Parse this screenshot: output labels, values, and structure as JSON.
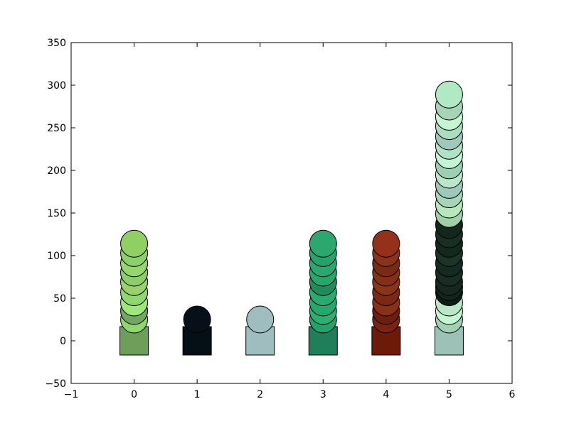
{
  "chart_data": {
    "type": "scatter",
    "title": "",
    "xlabel": "",
    "ylabel": "",
    "xlim": [
      -1,
      6
    ],
    "ylim": [
      -50,
      350
    ],
    "grid": false,
    "xticks": [
      -1,
      0,
      1,
      2,
      3,
      4,
      5,
      6
    ],
    "yticks": [
      -50,
      0,
      50,
      100,
      150,
      200,
      250,
      300,
      350
    ],
    "xtick_labels": [
      "−1",
      "0",
      "1",
      "2",
      "3",
      "4",
      "5",
      "6"
    ],
    "ytick_labels": [
      "−50",
      "0",
      "50",
      "100",
      "150",
      "200",
      "250",
      "300",
      "350"
    ],
    "squares": [
      {
        "x": 0,
        "y": 0,
        "color": "#6e9f5a"
      },
      {
        "x": 1,
        "y": 0,
        "color": "#041016"
      },
      {
        "x": 2,
        "y": 0,
        "color": "#9fbcbf"
      },
      {
        "x": 3,
        "y": 0,
        "color": "#1f7f5a"
      },
      {
        "x": 4,
        "y": 0,
        "color": "#6e1a08"
      },
      {
        "x": 5,
        "y": 0,
        "color": "#9cc2b8"
      }
    ],
    "stacks": [
      {
        "x": 0,
        "values": [
          25,
          35,
          45,
          57,
          69,
          80,
          91,
          103,
          114
        ],
        "colors": [
          "#8fd96a",
          "#6fa85e",
          "#9ee87a",
          "#8ed870",
          "#9ad26a",
          "#8bcf66",
          "#96d66e",
          "#8cd068",
          "#8fcf63"
        ]
      },
      {
        "x": 1,
        "values": [
          25
        ],
        "colors": [
          "#071018"
        ]
      },
      {
        "x": 2,
        "values": [
          25
        ],
        "colors": [
          "#9fbcbf"
        ]
      },
      {
        "x": 3,
        "values": [
          25,
          35,
          45,
          57,
          69,
          80,
          91,
          103,
          114
        ],
        "colors": [
          "#22a36a",
          "#2bb072",
          "#25a86c",
          "#2aaa70",
          "#1f8c5c",
          "#27a56b",
          "#2ba872",
          "#26a36d",
          "#2ba86e"
        ]
      },
      {
        "x": 4,
        "values": [
          25,
          35,
          45,
          57,
          69,
          80,
          91,
          103,
          114
        ],
        "colors": [
          "#7a2410",
          "#6e1e0c",
          "#8a3014",
          "#7c2812",
          "#8a3416",
          "#853015",
          "#7b2a12",
          "#8a3316",
          "#95311a"
        ]
      },
      {
        "x": 5,
        "values": [
          25,
          35,
          45,
          57,
          63,
          69,
          80,
          91,
          103,
          114,
          125,
          136,
          149,
          160,
          172,
          183,
          195,
          206,
          218,
          229,
          240,
          252,
          263,
          275,
          289
        ],
        "colors": [
          "#a4d1b4",
          "#c6f5d2",
          "#b8e8c8",
          "#0d1e18",
          "#13261d",
          "#15271e",
          "#1a2d22",
          "#162a24",
          "#1c3426",
          "#13281f",
          "#1a2e24",
          "#14271d",
          "#9fd0a8",
          "#b6e8bc",
          "#a8d4ba",
          "#9dc9ba",
          "#b9e6cc",
          "#9ccfb3",
          "#c4f3d5",
          "#b1e1c7",
          "#a0c9bb",
          "#aedcc0",
          "#c5f5d3",
          "#a7d4b8",
          "#b0eac4"
        ]
      }
    ]
  }
}
